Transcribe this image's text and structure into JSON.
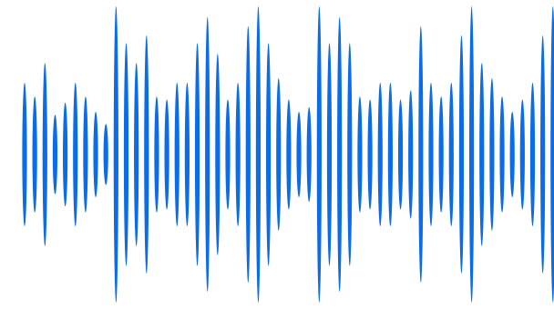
{
  "waveform": {
    "color": "#0a6ce6",
    "background": "#ffffff",
    "bar_count": 53,
    "bar_levels": [
      0.47,
      0.38,
      0.6,
      0.26,
      0.34,
      0.47,
      0.38,
      0.28,
      0.2,
      0.97,
      0.73,
      0.6,
      0.78,
      0.38,
      0.36,
      0.47,
      0.47,
      0.73,
      0.9,
      0.66,
      0.36,
      0.47,
      0.84,
      0.97,
      0.73,
      0.5,
      0.36,
      0.28,
      0.31,
      0.97,
      0.73,
      0.9,
      0.73,
      0.38,
      0.36,
      0.47,
      0.47,
      0.36,
      0.42,
      0.84,
      0.47,
      0.38,
      0.47,
      0.78,
      0.97,
      0.6,
      0.5,
      0.38,
      0.28,
      0.36,
      0.47,
      0.78,
      0.97
    ]
  }
}
